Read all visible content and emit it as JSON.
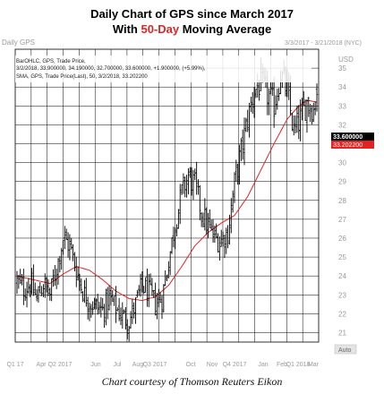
{
  "title": {
    "line1": "Daily Chart of GPS since March 2017",
    "line2_prefix": "With ",
    "line2_highlight": "50-Day",
    "line2_suffix": " Moving Average"
  },
  "header_left": "Daily GPS",
  "header_right": "3/3/2017 - 3/21/2018 (NYC)",
  "legend": {
    "ohlc_line1": "BarOHLC, GPS, Trade Price,",
    "ohlc_line2": "3/2/2018, 33.900000, 34.190000, 32.700000, 33.600000, +1.900000, (+5.99%),",
    "sma_line": "SMA, GPS, Trade Price(Last), 50, 3/2/2018, 33.202200"
  },
  "axis_unit": "USD",
  "price_tag": "33.600000",
  "sma_tag": "33.202200",
  "auto_label": "Auto",
  "caption": "Chart courtesy of Thomson Reuters Eikon",
  "colors": {
    "sma": "#e02424",
    "bars": "#000000",
    "grid": "#000000",
    "price_tag_bg": "#000000",
    "sma_tag_bg": "#e02424",
    "axis_text": "#9a9a9a"
  },
  "chart_data": {
    "type": "line",
    "ylim": [
      20.5,
      36
    ],
    "yticks": [
      21,
      22,
      23,
      24,
      25,
      26,
      27,
      28,
      29,
      30,
      31,
      32,
      33,
      34,
      35
    ],
    "x_labels": [
      "Q1 17",
      "Apr",
      "Q2 2017",
      "Jun",
      "Jul",
      "Aug",
      "Q3 2017",
      "Oct",
      "Nov",
      "Q4 2017",
      "Jan",
      "Feb",
      "Q1 2018",
      "Mar"
    ],
    "price_anchors": [
      [
        0,
        23.7
      ],
      [
        4,
        23.3
      ],
      [
        8,
        23.6
      ],
      [
        12,
        22.8
      ],
      [
        16,
        23.6
      ],
      [
        20,
        23.0
      ],
      [
        24,
        24.4
      ],
      [
        28,
        26.0
      ],
      [
        32,
        25.6
      ],
      [
        36,
        24.3
      ],
      [
        40,
        23.2
      ],
      [
        44,
        22.6
      ],
      [
        48,
        22.4
      ],
      [
        52,
        22.2
      ],
      [
        56,
        22.8
      ],
      [
        60,
        22.3
      ],
      [
        64,
        21.9
      ],
      [
        68,
        21.6
      ],
      [
        72,
        22.5
      ],
      [
        76,
        23.5
      ],
      [
        80,
        23.1
      ],
      [
        84,
        22.6
      ],
      [
        88,
        22.8
      ],
      [
        92,
        24.8
      ],
      [
        96,
        26.8
      ],
      [
        100,
        28.4
      ],
      [
        104,
        29.3
      ],
      [
        108,
        28.8
      ],
      [
        112,
        27.4
      ],
      [
        116,
        26.6
      ],
      [
        120,
        26.0
      ],
      [
        124,
        25.9
      ],
      [
        128,
        26.3
      ],
      [
        132,
        28.9
      ],
      [
        136,
        30.6
      ],
      [
        140,
        32.3
      ],
      [
        144,
        33.8
      ],
      [
        148,
        34.2
      ],
      [
        152,
        33.6
      ],
      [
        156,
        33.0
      ],
      [
        160,
        34.7
      ],
      [
        164,
        33.8
      ],
      [
        168,
        31.6
      ],
      [
        172,
        32.3
      ],
      [
        176,
        33.2
      ],
      [
        180,
        32.8
      ],
      [
        182,
        33.6
      ]
    ],
    "sma_anchors": [
      [
        0,
        24.0
      ],
      [
        10,
        23.8
      ],
      [
        20,
        23.6
      ],
      [
        28,
        24.1
      ],
      [
        36,
        24.5
      ],
      [
        44,
        24.3
      ],
      [
        52,
        23.8
      ],
      [
        60,
        23.2
      ],
      [
        68,
        22.8
      ],
      [
        76,
        22.7
      ],
      [
        84,
        22.9
      ],
      [
        92,
        23.5
      ],
      [
        100,
        24.5
      ],
      [
        108,
        25.6
      ],
      [
        116,
        26.3
      ],
      [
        124,
        26.8
      ],
      [
        132,
        27.2
      ],
      [
        140,
        28.2
      ],
      [
        148,
        29.6
      ],
      [
        156,
        31.0
      ],
      [
        164,
        32.3
      ],
      [
        170,
        32.9
      ],
      [
        176,
        33.3
      ],
      [
        182,
        33.2
      ]
    ]
  }
}
